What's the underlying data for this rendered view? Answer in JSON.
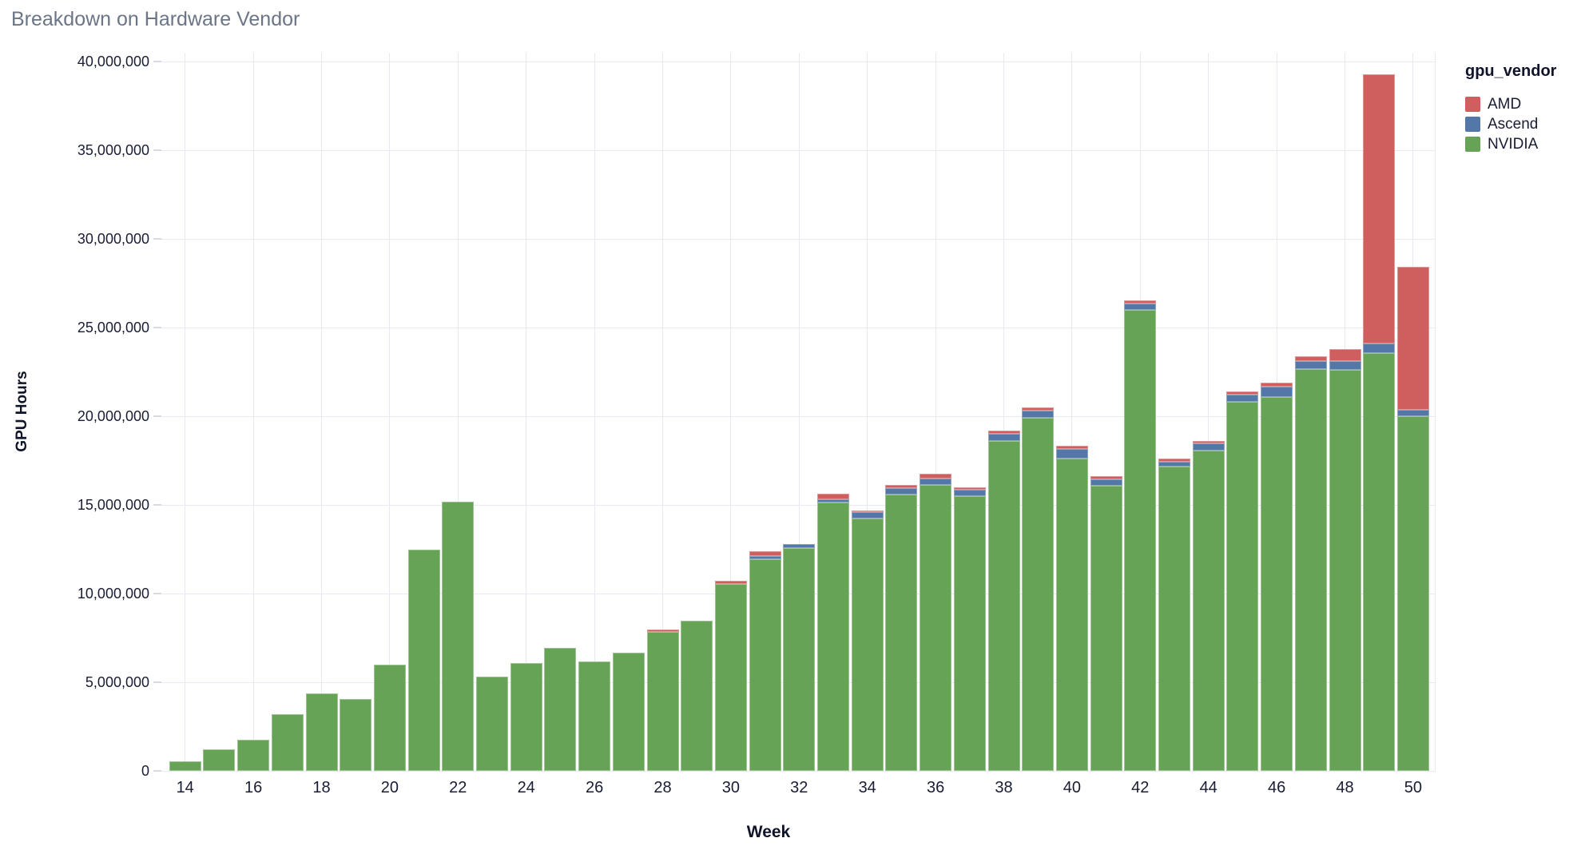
{
  "title": "Breakdown on Hardware Vendor",
  "colors": {
    "background": "#ffffff",
    "gridline": "#e9e9f1",
    "axis_text": "#191d33",
    "axis_title_text": "#10142a",
    "chart_title_text": "#6b7586",
    "amd_red": "#cf5f5e",
    "ascend_blue": "#5377a7",
    "nvidia_green": "#67a356"
  },
  "chart_data": {
    "type": "bar",
    "stacked": true,
    "title": "Breakdown on Hardware Vendor",
    "xlabel": "Week",
    "ylabel": "GPU Hours",
    "grid": true,
    "ylim": [
      0,
      40500000
    ],
    "yticks": [
      0,
      5000000,
      10000000,
      15000000,
      20000000,
      25000000,
      30000000,
      35000000,
      40000000
    ],
    "ytick_labels": [
      "0",
      "5,000,000",
      "10,000,000",
      "15,000,000",
      "20,000,000",
      "25,000,000",
      "30,000,000",
      "35,000,000",
      "40,000,000"
    ],
    "xticks": [
      14,
      16,
      18,
      20,
      22,
      24,
      26,
      28,
      30,
      32,
      34,
      36,
      38,
      40,
      42,
      44,
      46,
      48,
      50
    ],
    "x": [
      14,
      15,
      16,
      17,
      18,
      19,
      20,
      21,
      22,
      23,
      24,
      25,
      26,
      27,
      28,
      29,
      30,
      31,
      32,
      33,
      34,
      35,
      36,
      37,
      38,
      39,
      40,
      41,
      42,
      43,
      44,
      45,
      46,
      47,
      48,
      49,
      50
    ],
    "legend": {
      "title": "gpu_vendor",
      "position": "right",
      "entries": [
        "AMD",
        "Ascend",
        "NVIDIA"
      ]
    },
    "stack_order_bottom_to_top": [
      "NVIDIA",
      "Ascend",
      "AMD"
    ],
    "series": [
      {
        "name": "AMD",
        "color": "#cf5f5e",
        "values": [
          0,
          0,
          0,
          0,
          0,
          0,
          0,
          0,
          0,
          0,
          0,
          0,
          0,
          0,
          120000,
          0,
          180000,
          280000,
          0,
          300000,
          120000,
          170000,
          250000,
          150000,
          180000,
          180000,
          180000,
          180000,
          170000,
          180000,
          120000,
          200000,
          250000,
          280000,
          680000,
          15200000,
          8050000
        ]
      },
      {
        "name": "Ascend",
        "color": "#5377a7",
        "values": [
          0,
          0,
          0,
          0,
          0,
          0,
          0,
          0,
          0,
          0,
          0,
          0,
          0,
          0,
          0,
          0,
          0,
          170000,
          220000,
          170000,
          330000,
          350000,
          350000,
          350000,
          420000,
          420000,
          540000,
          350000,
          370000,
          300000,
          430000,
          400000,
          550000,
          450000,
          500000,
          550000,
          380000
        ]
      },
      {
        "name": "NVIDIA",
        "color": "#67a356",
        "values": [
          550000,
          1200000,
          1750000,
          3200000,
          4350000,
          4050000,
          6000000,
          12500000,
          15200000,
          5300000,
          6100000,
          6950000,
          6150000,
          6650000,
          7850000,
          8450000,
          10550000,
          11950000,
          12580000,
          15150000,
          14250000,
          15600000,
          16150000,
          15500000,
          18600000,
          19900000,
          17600000,
          16100000,
          26000000,
          17150000,
          18050000,
          20800000,
          21100000,
          22650000,
          22600000,
          23550000,
          20000000
        ]
      }
    ]
  }
}
